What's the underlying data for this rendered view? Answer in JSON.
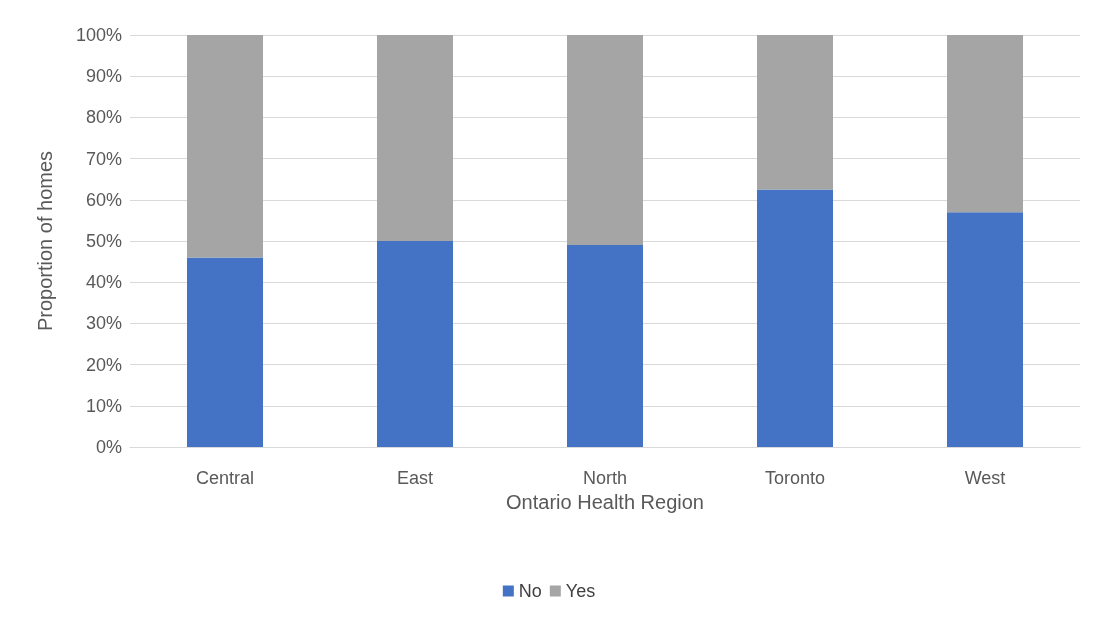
{
  "chart_data": {
    "type": "bar",
    "stacked": true,
    "xlabel": "Ontario Health Region",
    "ylabel": "Proportion of homes",
    "categories": [
      "Central",
      "East",
      "North",
      "Toronto",
      "West"
    ],
    "series": [
      {
        "name": "No",
        "color": "#4472c4",
        "values": [
          46,
          50,
          49,
          62.5,
          57
        ]
      },
      {
        "name": "Yes",
        "color": "#a5a5a5",
        "values": [
          54,
          50,
          51,
          37.5,
          43
        ]
      }
    ],
    "ylim": [
      0,
      100
    ],
    "yticks": [
      {
        "value": 0,
        "label": "0%"
      },
      {
        "value": 10,
        "label": "10%"
      },
      {
        "value": 20,
        "label": "20%"
      },
      {
        "value": 30,
        "label": "30%"
      },
      {
        "value": 40,
        "label": "40%"
      },
      {
        "value": 50,
        "label": "50%"
      },
      {
        "value": 60,
        "label": "60%"
      },
      {
        "value": 70,
        "label": "70%"
      },
      {
        "value": 80,
        "label": "80%"
      },
      {
        "value": 90,
        "label": "90%"
      },
      {
        "value": 100,
        "label": "100%"
      }
    ],
    "grid": "y",
    "legend": "bottom"
  }
}
